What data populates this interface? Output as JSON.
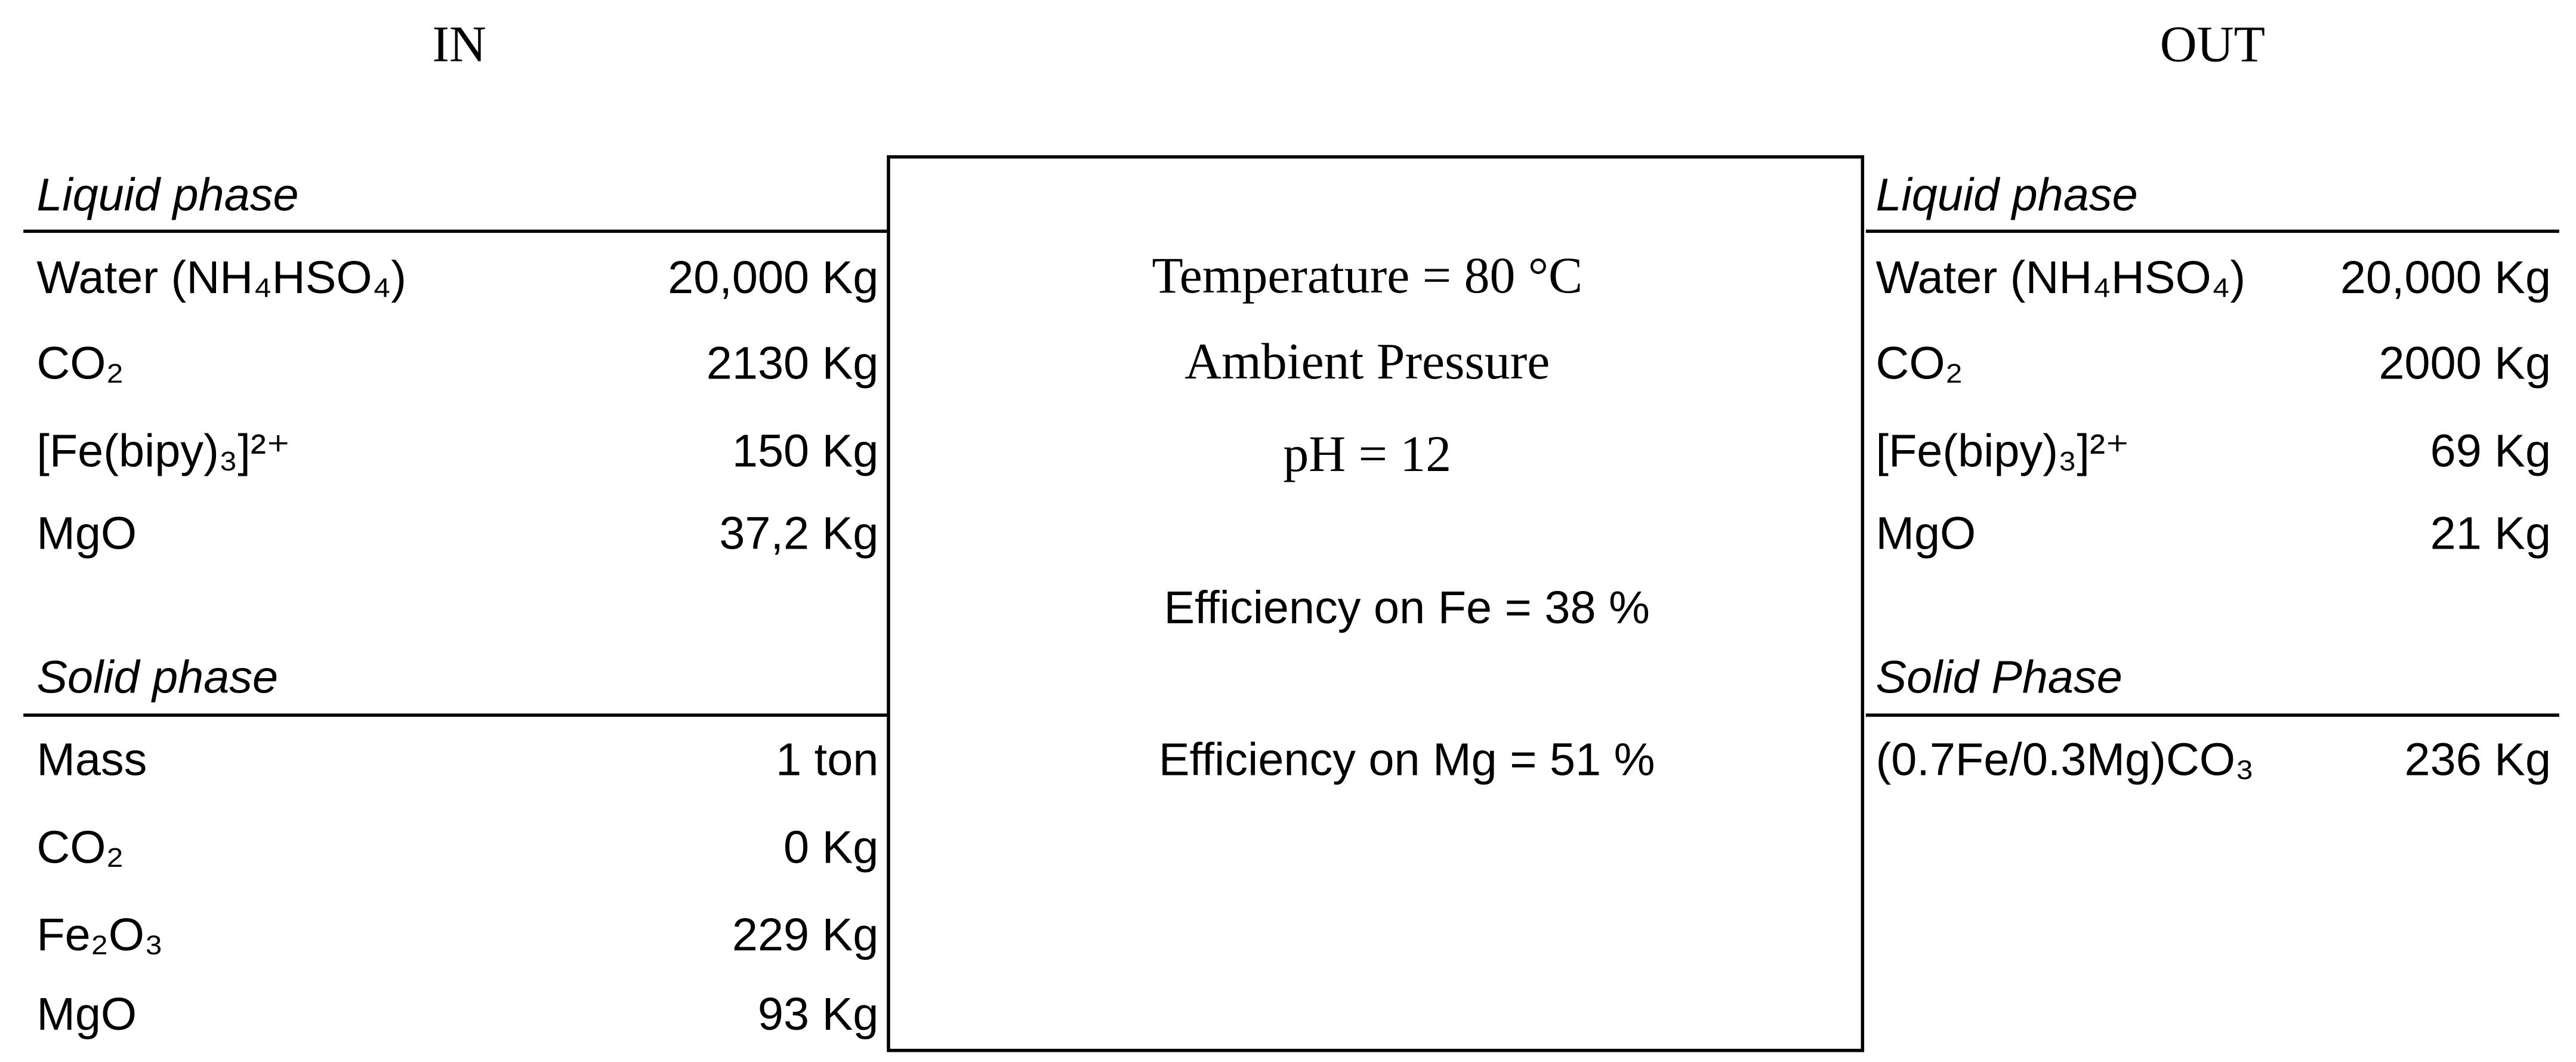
{
  "in": {
    "title": "IN",
    "liquid": {
      "heading": "Liquid phase",
      "rows": [
        {
          "name": "Water (NH₄HSO₄)",
          "amount": "20,000 Kg"
        },
        {
          "name": "CO₂",
          "amount": "2130 Kg"
        },
        {
          "name": "[Fe(bipy)₃]²⁺",
          "amount": "150 Kg"
        },
        {
          "name": "MgO",
          "amount": "37,2 Kg"
        }
      ]
    },
    "solid": {
      "heading": "Solid phase",
      "rows": [
        {
          "name": "Mass",
          "amount": "1 ton"
        },
        {
          "name": "CO₂",
          "amount": "0 Kg"
        },
        {
          "name": "Fe₂O₃",
          "amount": "229 Kg"
        },
        {
          "name": "MgO",
          "amount": "93 Kg"
        }
      ]
    }
  },
  "out": {
    "title": "OUT",
    "liquid": {
      "heading": "Liquid phase",
      "rows": [
        {
          "name": "Water (NH₄HSO₄)",
          "amount": "20,000 Kg"
        },
        {
          "name": "CO₂",
          "amount": "2000 Kg"
        },
        {
          "name": "[Fe(bipy)₃]²⁺",
          "amount": "69 Kg"
        },
        {
          "name": "MgO",
          "amount": "21 Kg"
        }
      ]
    },
    "solid": {
      "heading": "Solid Phase",
      "rows": [
        {
          "name": "(0.7Fe/0.3Mg)CO₃",
          "amount": "236 Kg"
        }
      ]
    }
  },
  "process": {
    "conditions": [
      "Temperature = 80 °C",
      "Ambient Pressure",
      "pH = 12"
    ],
    "efficiencies": [
      "Efficiency on Fe = 38 %",
      "Efficiency on Mg = 51 %"
    ]
  }
}
